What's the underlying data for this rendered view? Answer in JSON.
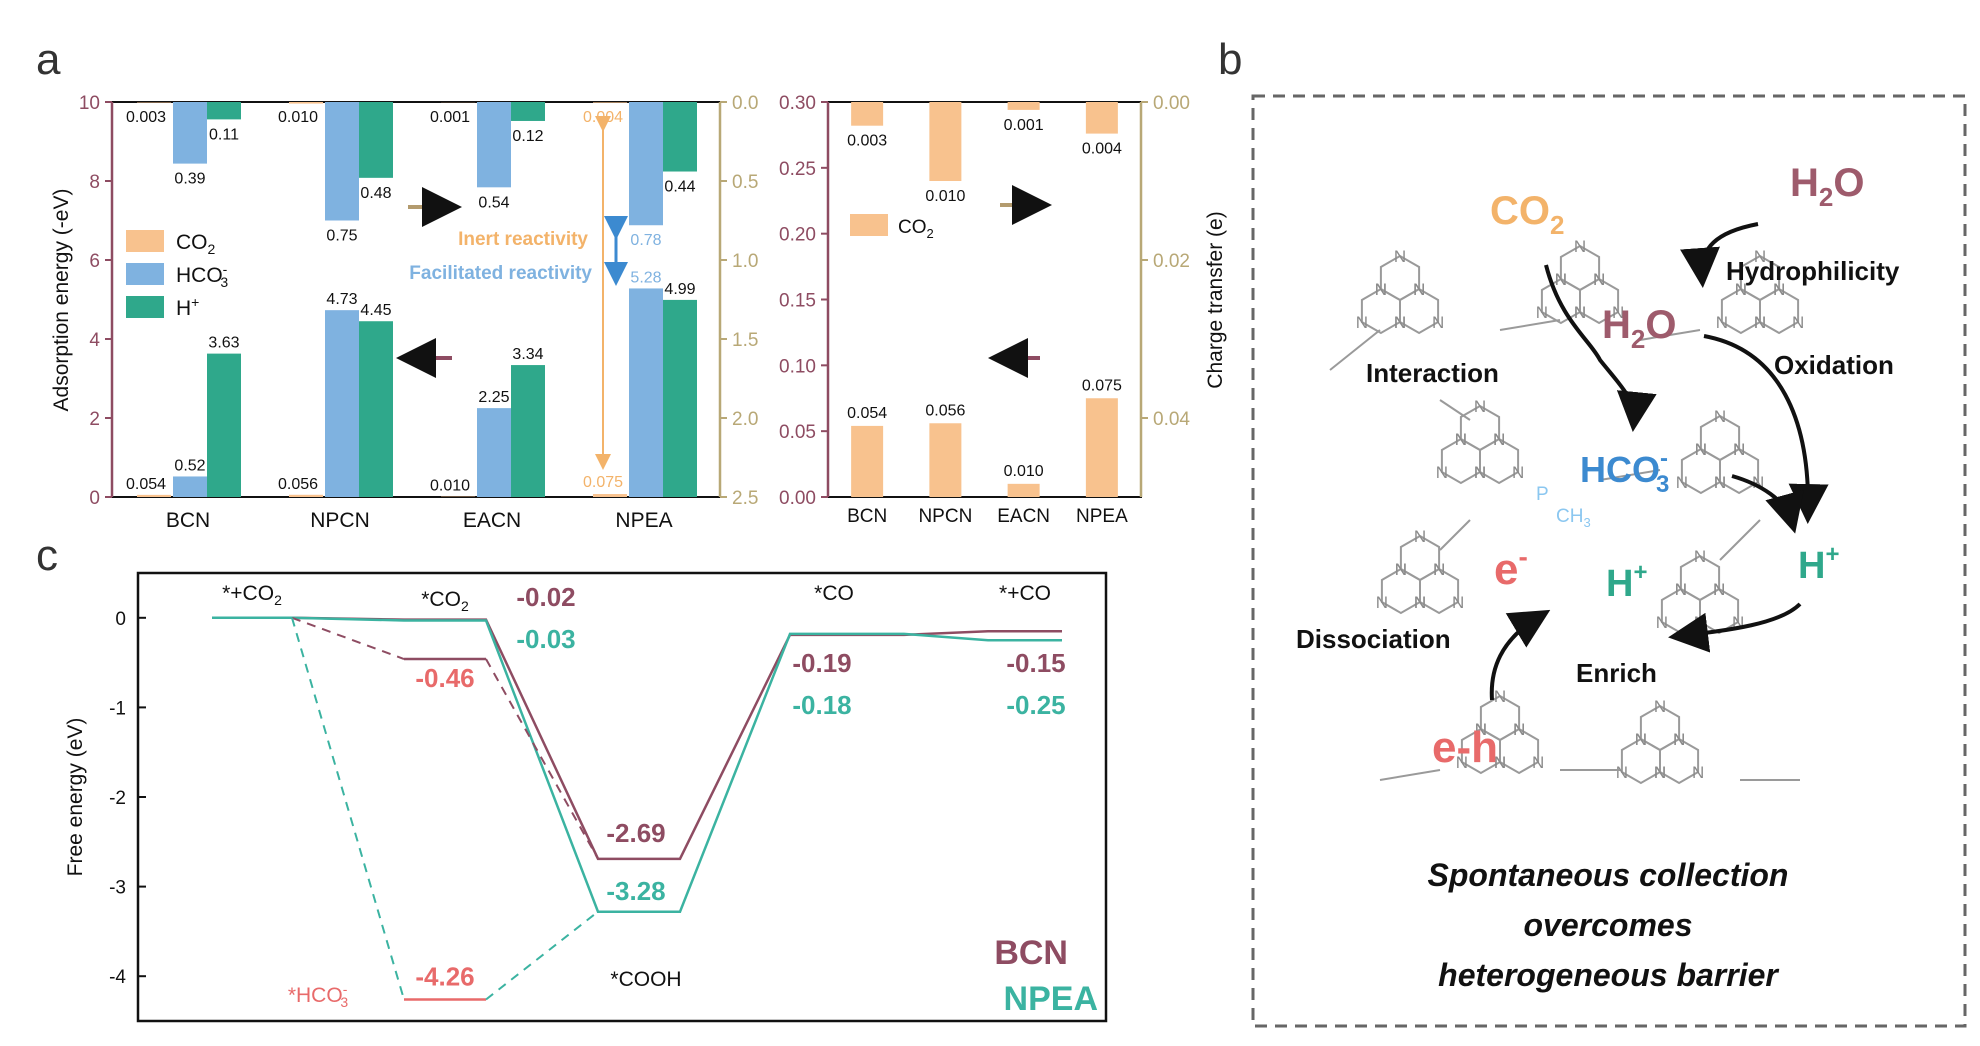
{
  "panels": {
    "a": "a",
    "b": "b",
    "c": "c"
  },
  "colors": {
    "co2": "#F8C28E",
    "hco3": "#7FB2E0",
    "h": "#2FA88B",
    "left_axis": "#8E4C62",
    "right_axis": "#B8A876",
    "bcn": "#8E4C62",
    "npea": "#3BB3A1",
    "hco3_text": "#E86A6A",
    "inert": "#F3B36A",
    "facilitated": "#7FB2E0",
    "arrow_tan": "#B39B6E"
  },
  "chart_data": [
    {
      "type": "bar",
      "categories": [
        "BCN",
        "NPCN",
        "EACN",
        "NPEA"
      ],
      "ylabel": "Adsorption energy (-eV)",
      "ylim": [
        0,
        10
      ],
      "y_ticks": [
        "0",
        "2",
        "4",
        "6",
        "8",
        "10"
      ],
      "ylabel_right": "",
      "ylim_right": [
        2.5,
        0.0
      ],
      "right_ticks": [
        "0.0",
        "0.5",
        "1.0",
        "1.5",
        "2.0",
        "2.5"
      ],
      "legend": [
        "CO",
        "HCO",
        "H"
      ],
      "legend_placement": "left",
      "series": [
        {
          "name": "CO2",
          "axis": "left",
          "values": [
            0.054,
            0.056,
            0.01,
            0.075
          ],
          "labels": [
            "0.054",
            "0.056",
            "0.010",
            ""
          ]
        },
        {
          "name": "HCO3-",
          "axis": "left",
          "values": [
            0.52,
            4.73,
            2.25,
            5.28
          ],
          "labels": [
            "0.52",
            "4.73",
            "2.25",
            "5.28"
          ]
        },
        {
          "name": "H+",
          "axis": "left",
          "values": [
            3.63,
            4.45,
            3.34,
            4.99
          ],
          "labels": [
            "3.63",
            "4.45",
            "3.34",
            "4.99"
          ]
        },
        {
          "name": "CO2 charge",
          "axis": "right",
          "values": [
            0.003,
            0.01,
            0.001,
            0.004
          ],
          "labels": [
            "0.003",
            "0.010",
            "0.001",
            ""
          ]
        },
        {
          "name": "HCO3- charge",
          "axis": "right",
          "values": [
            0.39,
            0.75,
            0.54,
            0.78
          ],
          "labels": [
            "0.39",
            "0.75",
            "0.54",
            "0.78"
          ]
        },
        {
          "name": "H+ charge",
          "axis": "right",
          "values": [
            0.11,
            0.48,
            0.12,
            0.44
          ],
          "labels": [
            "0.11",
            "0.48",
            "0.12",
            "0.44"
          ]
        }
      ],
      "annotations": [
        "Inert reactivity",
        "Facilitated reactivity",
        "0.004",
        "0.075"
      ]
    },
    {
      "type": "bar",
      "categories": [
        "BCN",
        "NPCN",
        "EACN",
        "NPEA"
      ],
      "ylabel": "",
      "ylim": [
        0,
        0.3
      ],
      "y_ticks": [
        "0.00",
        "0.05",
        "0.10",
        "0.15",
        "0.20",
        "0.25",
        "0.30"
      ],
      "ylabel_right": "Charge transfer (e)",
      "ylim_right": [
        0.05,
        0.0
      ],
      "right_ticks": [
        "0.00",
        "0.02",
        "0.04"
      ],
      "legend": [
        "CO"
      ],
      "series": [
        {
          "name": "CO2",
          "axis": "left",
          "values": [
            0.054,
            0.056,
            0.01,
            0.075
          ],
          "labels": [
            "0.054",
            "0.056",
            "0.010",
            "0.075"
          ]
        },
        {
          "name": "CO2 charge",
          "axis": "right",
          "values": [
            0.003,
            0.01,
            0.001,
            0.004
          ],
          "labels": [
            "0.003",
            "0.010",
            "0.001",
            "0.004"
          ]
        }
      ]
    },
    {
      "type": "line",
      "ylabel": "Free energy (eV)",
      "ylim": [
        -4.5,
        0.5
      ],
      "y_ticks": [
        "0",
        "-1",
        "-2",
        "-3",
        "-4"
      ],
      "states": [
        "*+CO",
        "*CO",
        "*COOH",
        "*CO",
        "*+CO"
      ],
      "series": [
        {
          "name": "BCN",
          "values": [
            0,
            -0.02,
            -2.69,
            -0.19,
            -0.15
          ],
          "labels": [
            "",
            "-0.02",
            "-2.69",
            "-0.19",
            "-0.15"
          ]
        },
        {
          "name": "NPEA",
          "values": [
            0,
            -0.03,
            -3.28,
            -0.18,
            -0.25
          ],
          "labels": [
            "",
            "-0.03",
            "-3.28",
            "-0.18",
            "-0.25"
          ]
        }
      ],
      "side_paths": [
        {
          "series": "BCN",
          "state": "*HCO",
          "value": -0.46,
          "label": "-0.46"
        },
        {
          "series": "NPEA",
          "state": "*HCO",
          "value": -4.26,
          "label": "-4.26"
        }
      ],
      "legend": [
        "BCN",
        "NPEA"
      ],
      "legend_placement": "bottom-right"
    }
  ],
  "diagram": {
    "labels": {
      "co2": "CO",
      "h2o_top": "H",
      "h2o_top_o": "O",
      "hydrophilicity": "Hydrophilicity",
      "h2o_mid": "H",
      "h2o_mid_o": "O",
      "interaction": "Interaction",
      "oxidation": "Oxidation",
      "hco3": "HCO",
      "e_minus": "e",
      "h_plus_1": "H",
      "h_plus_2": "H",
      "dissociation": "Dissociation",
      "enrich": "Enrich",
      "eh": "e-h",
      "ch3": "CH",
      "p": "P"
    },
    "caption": [
      "Spontaneous collection",
      "overcomes",
      "heterogeneous barrier"
    ]
  }
}
